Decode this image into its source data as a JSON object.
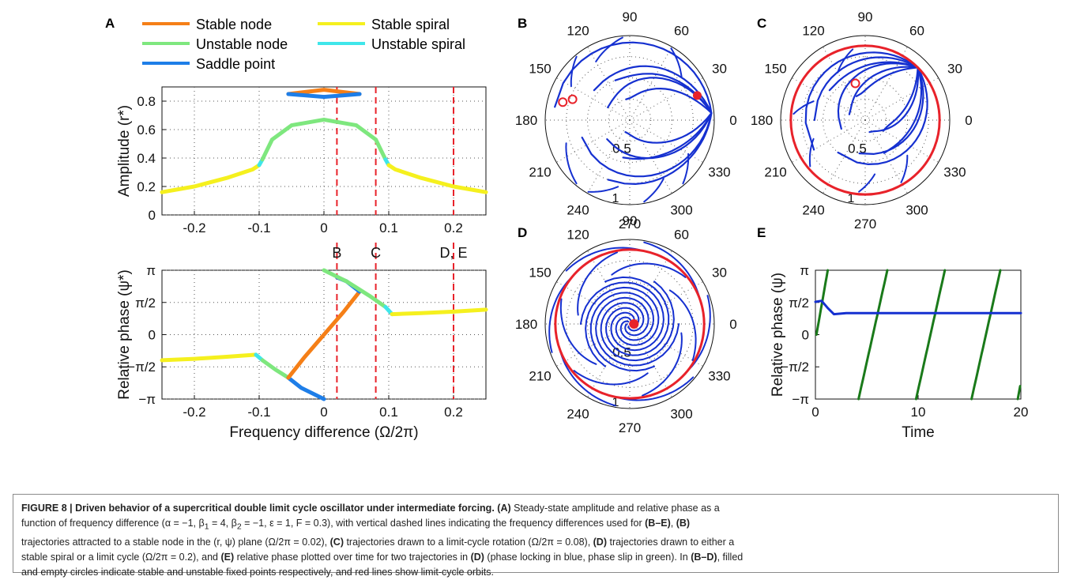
{
  "panels": {
    "A": "A",
    "B": "B",
    "C": "C",
    "D": "D",
    "E": "E"
  },
  "legend": [
    {
      "label": "Stable node",
      "color": "#f57f17"
    },
    {
      "label": "Stable spiral",
      "color": "#f5f01e"
    },
    {
      "label": "Unstable node",
      "color": "#7ee77e"
    },
    {
      "label": "Unstable spiral",
      "color": "#3fe6ea"
    },
    {
      "label": "Saddle point",
      "color": "#1e7ee8"
    }
  ],
  "colors": {
    "red": "#e8222a",
    "blue": "#1530d0",
    "green": "#1a7a1a",
    "grid": "#555555"
  },
  "chart_data": [
    {
      "type": "line",
      "panel": "A-top",
      "ylabel": "Amplitude (r*)",
      "xlabel": "",
      "xlim": [
        -0.25,
        0.25
      ],
      "ylim": [
        0,
        0.9
      ],
      "xticks": [
        "-0.2",
        "-0.1",
        "0",
        "0.1",
        "0.2"
      ],
      "yticks": [
        "0",
        "0.2",
        "0.4",
        "0.6",
        "0.8"
      ],
      "vlines": [
        0.02,
        0.08,
        0.2
      ],
      "series": [
        {
          "name": "Stable spiral",
          "x": [
            -0.25,
            -0.2,
            -0.15,
            -0.11,
            -0.1
          ],
          "y": [
            0.16,
            0.2,
            0.26,
            0.32,
            0.35
          ]
        },
        {
          "name": "Unstable spiral",
          "x": [
            -0.1,
            -0.095
          ],
          "y": [
            0.35,
            0.39
          ]
        },
        {
          "name": "Unstable node",
          "x": [
            -0.095,
            -0.08,
            -0.05,
            0,
            0.05,
            0.08,
            0.095
          ],
          "y": [
            0.39,
            0.53,
            0.63,
            0.67,
            0.63,
            0.53,
            0.39
          ]
        },
        {
          "name": "Unstable spiral",
          "x": [
            0.095,
            0.1
          ],
          "y": [
            0.39,
            0.35
          ]
        },
        {
          "name": "Stable spiral",
          "x": [
            0.1,
            0.11,
            0.15,
            0.2,
            0.25
          ],
          "y": [
            0.35,
            0.32,
            0.26,
            0.2,
            0.16
          ]
        },
        {
          "name": "Stable node",
          "x": [
            -0.055,
            0,
            0.055
          ],
          "y": [
            0.85,
            0.88,
            0.85
          ]
        },
        {
          "name": "Saddle point",
          "x": [
            -0.055,
            0,
            0.055
          ],
          "y": [
            0.85,
            0.83,
            0.85
          ]
        }
      ]
    },
    {
      "type": "line",
      "panel": "A-bottom",
      "ylabel": "Relative phase (ψ*)",
      "xlabel": "Frequency difference (Ω/2π)",
      "xlim": [
        -0.25,
        0.25
      ],
      "ylim": [
        -3.1416,
        3.1416
      ],
      "xticks": [
        "-0.2",
        "-0.1",
        "0",
        "0.1",
        "0.2"
      ],
      "yticks": [
        "−π",
        "−π/2",
        "0",
        "π/2",
        "π"
      ],
      "vline_labels": [
        "B",
        "C",
        "D, E"
      ],
      "vlines": [
        0.02,
        0.08,
        0.2
      ],
      "series": [
        {
          "name": "Stable spiral",
          "x": [
            -0.25,
            -0.2,
            -0.15,
            -0.105
          ],
          "y": [
            -1.25,
            -1.18,
            -1.08,
            -0.98
          ]
        },
        {
          "name": "Unstable spiral",
          "x": [
            -0.105,
            -0.095
          ],
          "y": [
            -0.98,
            -1.25
          ]
        },
        {
          "name": "Unstable node",
          "x": [
            -0.095,
            -0.075,
            -0.055
          ],
          "y": [
            -1.25,
            -1.7,
            -2.1
          ]
        },
        {
          "name": "Saddle point",
          "x": [
            -0.055,
            -0.035,
            0
          ],
          "y": [
            -2.1,
            -2.6,
            -3.14
          ]
        },
        {
          "name": "Stable node",
          "x": [
            -0.055,
            -0.03,
            0,
            0.03,
            0.055
          ],
          "y": [
            -2.1,
            -1.1,
            0,
            1.1,
            2.1
          ]
        },
        {
          "name": "Saddle point",
          "x": [
            0.055,
            0.035,
            0.02
          ],
          "y": [
            2.1,
            2.6,
            2.8
          ]
        },
        {
          "name": "Unstable node",
          "x": [
            0,
            0.035,
            0.07,
            0.095
          ],
          "y": [
            3.14,
            2.6,
            1.9,
            1.35
          ]
        },
        {
          "name": "Unstable spiral",
          "x": [
            0.095,
            0.105
          ],
          "y": [
            1.35,
            1.0
          ]
        },
        {
          "name": "Stable spiral",
          "x": [
            0.105,
            0.15,
            0.2,
            0.25
          ],
          "y": [
            1.0,
            1.05,
            1.12,
            1.22
          ]
        }
      ]
    },
    {
      "type": "scatter",
      "panel": "B",
      "angle_ticks": [
        "90",
        "60",
        "30",
        "0",
        "330",
        "300",
        "270",
        "240",
        "210",
        "180",
        "150",
        "120"
      ],
      "radial_ticks": [
        "0.5",
        "1"
      ],
      "stable_fixed_points": [
        {
          "r": 0.85,
          "theta_deg": 20
        }
      ],
      "unstable_fixed_points": [
        {
          "r": 0.82,
          "theta_deg": 165
        },
        {
          "r": 0.72,
          "theta_deg": 160
        }
      ]
    },
    {
      "type": "scatter",
      "panel": "C",
      "angle_ticks": [
        "90",
        "60",
        "30",
        "0",
        "330",
        "300",
        "270",
        "240",
        "210",
        "180",
        "150",
        "120"
      ],
      "radial_ticks": [
        "0.5",
        "1"
      ],
      "limit_cycle_radius": 0.88,
      "unstable_fixed_points": [
        {
          "r": 0.45,
          "theta_deg": 105
        }
      ]
    },
    {
      "type": "scatter",
      "panel": "D",
      "angle_ticks": [
        "90",
        "60",
        "30",
        "0",
        "330",
        "300",
        "270",
        "240",
        "210",
        "180",
        "150",
        "120"
      ],
      "radial_ticks": [
        "0.5",
        "1"
      ],
      "limit_cycle_radius": 0.88,
      "stable_fixed_points": [
        {
          "r": 0.05,
          "theta_deg": 0
        }
      ]
    },
    {
      "type": "line",
      "panel": "E",
      "ylabel": "Relative phase (ψ)",
      "xlabel": "Time",
      "xlim": [
        0,
        20
      ],
      "ylim": [
        -3.1416,
        3.1416
      ],
      "xticks": [
        "0",
        "10",
        "20"
      ],
      "yticks": [
        "−π",
        "−π/2",
        "0",
        "π/2",
        "π"
      ],
      "series": [
        {
          "name": "phase locking",
          "x": [
            0,
            0.6,
            1.2,
            1.8,
            3,
            5,
            20
          ],
          "y": [
            1.6,
            1.65,
            1.3,
            1.0,
            1.05,
            1.05,
            1.05
          ]
        }
      ]
    }
  ],
  "caption": {
    "title": "FIGURE 8 | Driven behavior of a supercritical double limit cycle oscillator under intermediate forcing.",
    "line1a": "(A)",
    "line1b": " Steady-state amplitude and relative phase as a",
    "line2a": "function of frequency difference (α = −1, β",
    "line2b": " = 4, β",
    "line2c": " = −1, ε = 1, F = 0.3), with vertical dashed lines indicating the frequency differences used for ",
    "line2d": "(B–E)",
    "line2e": ", ",
    "line2f": "(B)",
    "line3a": "trajectories attracted to a stable node in the (r, ψ) plane (Ω/2π = 0.02), ",
    "line3b": "(C)",
    "line3c": " trajectories drawn to a limit-cycle rotation (Ω/2π = 0.08), ",
    "line3d": "(D)",
    "line3e": " trajectories drawn to either a",
    "line4a": "stable spiral or a limit cycle (Ω/2π = 0.2), and ",
    "line4b": "(E)",
    "line4c": " relative phase plotted over time for two trajectories in ",
    "line4d": "(D)",
    "line4e": " (phase locking in blue, phase slip in green). In ",
    "line4f": "(B–D)",
    "line4g": ", filled",
    "line5": "and empty circles indicate stable and unstable fixed points respectively, and red lines show limit-cycle orbits.",
    "sub1": "1",
    "sub2": "2"
  }
}
